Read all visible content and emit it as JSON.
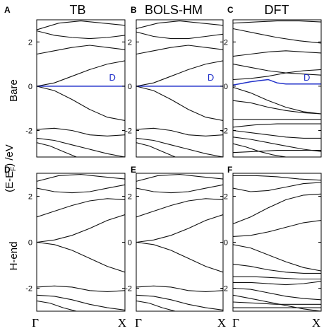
{
  "figure": {
    "ylabel": "(E-E",
    "ylabel_sub": "F",
    "ylabel_tail": ") /eV",
    "row_labels": [
      "Bare",
      "H-end"
    ],
    "column_titles": [
      "TB",
      "BOLS-HM",
      "DFT"
    ],
    "x_tick_labels": [
      "Γ",
      "X"
    ],
    "y_ticks": [
      -2,
      0,
      2
    ],
    "colors": {
      "band": "#111111",
      "d_band": "#1f2fc9"
    }
  },
  "chart_data": [
    {
      "panel": "A",
      "type": "line",
      "ylim": [
        -3.2,
        3.0
      ],
      "xlim": [
        0,
        1
      ],
      "series": [
        {
          "x": [
            0,
            0.25,
            0.5,
            0.75,
            1
          ],
          "y": [
            2.55,
            2.85,
            2.95,
            2.85,
            2.75
          ]
        },
        {
          "x": [
            0,
            0.2,
            0.4,
            0.6,
            0.8,
            1
          ],
          "y": [
            2.5,
            2.3,
            2.2,
            2.15,
            2.2,
            2.3
          ]
        },
        {
          "x": [
            0,
            0.2,
            0.4,
            0.6,
            0.8,
            1
          ],
          "y": [
            1.45,
            1.6,
            1.75,
            1.85,
            1.75,
            1.65
          ]
        },
        {
          "x": [
            0,
            0.2,
            0.4,
            0.6,
            0.8,
            1
          ],
          "y": [
            0,
            0.15,
            0.45,
            0.75,
            1.0,
            1.15
          ]
        },
        {
          "x": [
            0,
            0.2,
            0.4,
            0.6,
            0.8,
            1
          ],
          "y": [
            0,
            -0.2,
            -0.6,
            -1.05,
            -1.4,
            -1.55
          ]
        },
        {
          "x": [
            0,
            0.2,
            0.4,
            0.6,
            0.8,
            1
          ],
          "y": [
            -1.95,
            -1.9,
            -2.0,
            -2.2,
            -2.25,
            -2.2
          ]
        },
        {
          "x": [
            0,
            0.2,
            0.4,
            0.6,
            0.8,
            1
          ],
          "y": [
            -2.35,
            -2.45,
            -2.65,
            -2.85,
            -3.05,
            -3.2
          ]
        },
        {
          "x": [
            0,
            0.15,
            0.3,
            0.45
          ],
          "y": [
            -2.55,
            -2.7,
            -2.95,
            -3.2
          ]
        }
      ],
      "d_band": {
        "label": "D",
        "x": [
          0,
          0.2,
          0.4,
          0.6,
          0.8,
          1
        ],
        "y": [
          0,
          0,
          0,
          0,
          0,
          0
        ]
      }
    },
    {
      "panel": "B",
      "type": "line",
      "ylim": [
        -3.2,
        3.0
      ],
      "xlim": [
        0,
        1
      ],
      "series": [
        {
          "x": [
            0,
            0.25,
            0.5,
            0.75,
            1
          ],
          "y": [
            2.6,
            2.85,
            2.95,
            2.85,
            2.75
          ]
        },
        {
          "x": [
            0,
            0.2,
            0.4,
            0.6,
            0.8,
            1
          ],
          "y": [
            2.45,
            2.25,
            2.15,
            2.15,
            2.25,
            2.35
          ]
        },
        {
          "x": [
            0,
            0.2,
            0.4,
            0.6,
            0.8,
            1
          ],
          "y": [
            1.45,
            1.6,
            1.75,
            1.85,
            1.75,
            1.65
          ]
        },
        {
          "x": [
            0,
            0.2,
            0.4,
            0.6,
            0.8,
            1
          ],
          "y": [
            0,
            0.15,
            0.45,
            0.75,
            1.0,
            1.15
          ]
        },
        {
          "x": [
            0,
            0.2,
            0.4,
            0.6,
            0.8,
            1
          ],
          "y": [
            0,
            -0.2,
            -0.6,
            -1.05,
            -1.4,
            -1.55
          ]
        },
        {
          "x": [
            0,
            0.2,
            0.4,
            0.6,
            0.8,
            1
          ],
          "y": [
            -1.95,
            -1.9,
            -2.0,
            -2.2,
            -2.25,
            -2.2
          ]
        },
        {
          "x": [
            0,
            0.2,
            0.4,
            0.6,
            0.8,
            1
          ],
          "y": [
            -2.35,
            -2.45,
            -2.65,
            -2.85,
            -3.05,
            -3.2
          ]
        },
        {
          "x": [
            0,
            0.15,
            0.3,
            0.45
          ],
          "y": [
            -2.55,
            -2.7,
            -2.95,
            -3.2
          ]
        }
      ],
      "d_band": {
        "label": "D",
        "x": [
          0,
          0.2,
          0.4,
          0.6,
          0.8,
          1
        ],
        "y": [
          0,
          0,
          0,
          0,
          0,
          0
        ]
      }
    },
    {
      "panel": "C",
      "type": "line",
      "ylim": [
        -3.2,
        3.0
      ],
      "xlim": [
        0,
        1
      ],
      "series": [
        {
          "x": [
            0,
            0.25,
            0.5,
            0.75,
            1
          ],
          "y": [
            2.85,
            2.9,
            2.95,
            2.95,
            2.9
          ]
        },
        {
          "x": [
            0,
            0.25,
            0.5,
            0.75,
            1
          ],
          "y": [
            2.6,
            2.4,
            2.2,
            2.05,
            1.95
          ]
        },
        {
          "x": [
            0,
            0.2,
            0.4,
            0.6,
            0.8,
            1
          ],
          "y": [
            1.35,
            1.45,
            1.55,
            1.6,
            1.55,
            1.5
          ]
        },
        {
          "x": [
            0,
            0.2,
            0.4,
            0.6,
            0.8,
            1
          ],
          "y": [
            1.0,
            0.85,
            0.7,
            0.6,
            0.55,
            0.5
          ]
        },
        {
          "x": [
            0,
            0.2,
            0.4,
            0.6,
            0.8,
            1
          ],
          "y": [
            0.3,
            0.35,
            0.45,
            0.6,
            0.7,
            0.75
          ]
        },
        {
          "x": [
            0,
            0.2,
            0.4,
            0.6,
            0.8,
            1
          ],
          "y": [
            -0.05,
            -0.3,
            -0.65,
            -0.95,
            -1.15,
            -1.25
          ]
        },
        {
          "x": [
            0,
            0.2,
            0.4,
            0.6,
            0.8,
            1
          ],
          "y": [
            -0.65,
            -0.75,
            -0.95,
            -1.1,
            -1.2,
            -1.25
          ]
        },
        {
          "x": [
            0,
            0.25,
            0.5,
            0.75,
            1
          ],
          "y": [
            -1.5,
            -1.5,
            -1.5,
            -1.5,
            -1.5
          ]
        },
        {
          "x": [
            0,
            0.25,
            0.5,
            0.75,
            1
          ],
          "y": [
            -1.85,
            -1.75,
            -1.7,
            -1.7,
            -1.7
          ]
        },
        {
          "x": [
            0,
            0.2,
            0.4,
            0.6,
            0.8,
            1
          ],
          "y": [
            -2.0,
            -2.1,
            -2.2,
            -2.3,
            -2.35,
            -2.35
          ]
        },
        {
          "x": [
            0,
            0.2,
            0.4,
            0.6,
            0.8,
            1
          ],
          "y": [
            -2.3,
            -2.4,
            -2.55,
            -2.7,
            -2.85,
            -2.95
          ]
        },
        {
          "x": [
            0,
            0.15,
            0.3,
            0.45,
            0.6
          ],
          "y": [
            -2.6,
            -2.75,
            -2.95,
            -3.1,
            -3.2
          ]
        },
        {
          "x": [
            0,
            0.25,
            0.5,
            0.75,
            1
          ],
          "y": [
            -3.0,
            -2.95,
            -2.9,
            -2.9,
            -2.9
          ]
        }
      ],
      "d_band": {
        "label": "D",
        "x": [
          0,
          0.2,
          0.3,
          0.4,
          0.5,
          0.6,
          0.8,
          1
        ],
        "y": [
          0.05,
          0.2,
          0.25,
          0.3,
          0.15,
          0.1,
          0.1,
          0.1
        ]
      }
    },
    {
      "panel": "D",
      "type": "line",
      "ylim": [
        -3.0,
        3.0
      ],
      "xlim": [
        0,
        1
      ],
      "series": [
        {
          "x": [
            0,
            0.25,
            0.5,
            0.75,
            1
          ],
          "y": [
            2.65,
            2.9,
            2.95,
            2.85,
            2.75
          ]
        },
        {
          "x": [
            0,
            0.2,
            0.4,
            0.6,
            0.8,
            1
          ],
          "y": [
            2.35,
            2.2,
            2.15,
            2.2,
            2.35,
            2.5
          ]
        },
        {
          "x": [
            0,
            0.2,
            0.4,
            0.6,
            0.8,
            1
          ],
          "y": [
            1.1,
            1.35,
            1.6,
            1.8,
            1.9,
            1.85
          ]
        },
        {
          "x": [
            0,
            0.2,
            0.4,
            0.6,
            0.8,
            1
          ],
          "y": [
            0,
            0.1,
            0.3,
            0.6,
            0.95,
            1.2
          ]
        },
        {
          "x": [
            0,
            0.2,
            0.4,
            0.6,
            0.8,
            1
          ],
          "y": [
            0,
            -0.1,
            -0.35,
            -0.7,
            -1.05,
            -1.3
          ]
        },
        {
          "x": [
            0,
            0.2,
            0.4,
            0.6,
            0.8,
            1
          ],
          "y": [
            -1.95,
            -1.9,
            -1.95,
            -2.1,
            -2.15,
            -2.1
          ]
        },
        {
          "x": [
            0,
            0.2,
            0.4,
            0.6,
            0.8,
            1
          ],
          "y": [
            -2.3,
            -2.35,
            -2.5,
            -2.7,
            -2.85,
            -2.95
          ]
        },
        {
          "x": [
            0,
            0.15,
            0.3,
            0.45
          ],
          "y": [
            -2.55,
            -2.65,
            -2.85,
            -3.0
          ]
        }
      ]
    },
    {
      "panel": "E",
      "type": "line",
      "ylim": [
        -3.0,
        3.0
      ],
      "xlim": [
        0,
        1
      ],
      "series": [
        {
          "x": [
            0,
            0.25,
            0.5,
            0.75,
            1
          ],
          "y": [
            2.65,
            2.9,
            2.95,
            2.85,
            2.75
          ]
        },
        {
          "x": [
            0,
            0.2,
            0.4,
            0.6,
            0.8,
            1
          ],
          "y": [
            2.35,
            2.2,
            2.15,
            2.2,
            2.35,
            2.5
          ]
        },
        {
          "x": [
            0,
            0.2,
            0.4,
            0.6,
            0.8,
            1
          ],
          "y": [
            1.1,
            1.35,
            1.6,
            1.8,
            1.9,
            1.85
          ]
        },
        {
          "x": [
            0,
            0.2,
            0.4,
            0.6,
            0.8,
            1
          ],
          "y": [
            0,
            0.1,
            0.3,
            0.6,
            0.95,
            1.2
          ]
        },
        {
          "x": [
            0,
            0.2,
            0.4,
            0.6,
            0.8,
            1
          ],
          "y": [
            0,
            -0.1,
            -0.35,
            -0.7,
            -1.05,
            -1.3
          ]
        },
        {
          "x": [
            0,
            0.2,
            0.4,
            0.6,
            0.8,
            1
          ],
          "y": [
            -1.95,
            -1.9,
            -1.95,
            -2.1,
            -2.15,
            -2.1
          ]
        },
        {
          "x": [
            0,
            0.2,
            0.4,
            0.6,
            0.8,
            1
          ],
          "y": [
            -2.3,
            -2.35,
            -2.5,
            -2.7,
            -2.85,
            -2.95
          ]
        },
        {
          "x": [
            0,
            0.15,
            0.3,
            0.45
          ],
          "y": [
            -2.55,
            -2.65,
            -2.85,
            -3.0
          ]
        }
      ]
    },
    {
      "panel": "F",
      "type": "line",
      "ylim": [
        -3.0,
        3.0
      ],
      "xlim": [
        0,
        1
      ],
      "series": [
        {
          "x": [
            0,
            0.25,
            0.5,
            0.75,
            1
          ],
          "y": [
            2.9,
            2.9,
            2.85,
            2.75,
            2.7
          ]
        },
        {
          "x": [
            0,
            0.2,
            0.4,
            0.6,
            0.8,
            1
          ],
          "y": [
            2.35,
            2.2,
            2.25,
            2.4,
            2.55,
            2.6
          ]
        },
        {
          "x": [
            0,
            0.2,
            0.4,
            0.6,
            0.8,
            1
          ],
          "y": [
            0.8,
            1.1,
            1.5,
            1.85,
            2.05,
            2.1
          ]
        },
        {
          "x": [
            0,
            0.2,
            0.4,
            0.6,
            0.8,
            1
          ],
          "y": [
            0.25,
            0.3,
            0.45,
            0.65,
            0.85,
            0.95
          ]
        },
        {
          "x": [
            0,
            0.2,
            0.4,
            0.6,
            0.8,
            1
          ],
          "y": [
            -0.1,
            -0.25,
            -0.55,
            -0.85,
            -1.1,
            -1.25
          ]
        },
        {
          "x": [
            0,
            0.2,
            0.4,
            0.6,
            0.8,
            1
          ],
          "y": [
            -0.95,
            -1.05,
            -1.2,
            -1.3,
            -1.35,
            -1.35
          ]
        },
        {
          "x": [
            0,
            0.25,
            0.5,
            0.75,
            1
          ],
          "y": [
            -1.5,
            -1.5,
            -1.55,
            -1.6,
            -1.6
          ]
        },
        {
          "x": [
            0,
            0.2,
            0.4,
            0.6,
            0.8,
            1
          ],
          "y": [
            -1.75,
            -1.75,
            -1.8,
            -1.85,
            -1.8,
            -1.7
          ]
        },
        {
          "x": [
            0,
            0.2,
            0.4,
            0.6,
            0.8,
            1
          ],
          "y": [
            -2.0,
            -2.05,
            -2.2,
            -2.35,
            -2.45,
            -2.5
          ]
        },
        {
          "x": [
            0,
            0.2,
            0.4,
            0.6,
            0.8,
            1
          ],
          "y": [
            -2.3,
            -2.45,
            -2.6,
            -2.75,
            -2.9,
            -3.0
          ]
        },
        {
          "x": [
            0,
            0.25,
            0.5,
            0.75,
            1
          ],
          "y": [
            -2.6,
            -2.65,
            -2.7,
            -2.7,
            -2.7
          ]
        },
        {
          "x": [
            0,
            0.25,
            0.5,
            0.75,
            1
          ],
          "y": [
            -2.85,
            -2.85,
            -2.85,
            -2.85,
            -2.85
          ]
        }
      ]
    }
  ]
}
